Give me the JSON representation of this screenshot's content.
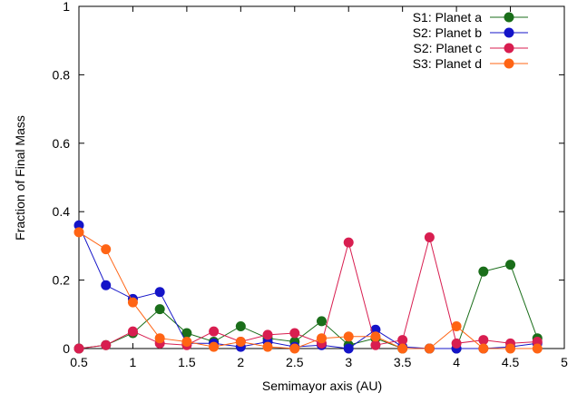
{
  "chart_data": {
    "type": "line",
    "title": "",
    "xlabel": "Semimayor axis (AU)",
    "ylabel": "Fraction of Final Mass",
    "xlim": [
      0.5,
      5
    ],
    "ylim": [
      0,
      1
    ],
    "x_ticks": [
      "0.5",
      "1",
      "1.5",
      "2",
      "2.5",
      "3",
      "3.5",
      "4",
      "4.5",
      "5"
    ],
    "y_ticks": [
      "0",
      "0.2",
      "0.4",
      "0.6",
      "0.8",
      "1"
    ],
    "grid": false,
    "legend_position": "top-right",
    "series": [
      {
        "name": "S1: Planet a",
        "color": "#1a6e1a",
        "x": [
          0.5,
          0.75,
          1.0,
          1.25,
          1.5,
          1.75,
          2.0,
          2.25,
          2.5,
          2.75,
          3.0,
          3.25,
          3.5,
          3.75,
          4.0,
          4.25,
          4.5,
          4.75
        ],
        "y": [
          0.0,
          0.01,
          0.045,
          0.115,
          0.045,
          0.02,
          0.065,
          0.03,
          0.02,
          0.08,
          0.01,
          0.03,
          0.0,
          0.0,
          0.0,
          0.225,
          0.245,
          0.03
        ]
      },
      {
        "name": "S2: Planet b",
        "color": "#1414c8",
        "x": [
          0.5,
          0.75,
          1.0,
          1.25,
          1.5,
          1.75,
          2.0,
          2.25,
          2.5,
          2.75,
          3.0,
          3.25,
          3.5,
          3.75,
          4.0,
          4.25,
          4.5,
          4.75
        ],
        "y": [
          0.36,
          0.185,
          0.145,
          0.165,
          0.015,
          0.015,
          0.005,
          0.02,
          0.005,
          0.01,
          0.0,
          0.055,
          0.005,
          0.0,
          0.0,
          0.0,
          0.005,
          0.015
        ]
      },
      {
        "name": "S2: Planet c",
        "color": "#d81e50",
        "x": [
          0.5,
          0.75,
          1.0,
          1.25,
          1.5,
          1.75,
          2.0,
          2.25,
          2.5,
          2.75,
          3.0,
          3.25,
          3.5,
          3.75,
          4.0,
          4.25,
          4.5,
          4.75
        ],
        "y": [
          0.0,
          0.01,
          0.05,
          0.015,
          0.01,
          0.05,
          0.02,
          0.04,
          0.045,
          0.015,
          0.31,
          0.01,
          0.025,
          0.325,
          0.015,
          0.025,
          0.015,
          0.02
        ]
      },
      {
        "name": "S3: Planet d",
        "color": "#ff6414",
        "x": [
          0.5,
          0.75,
          1.0,
          1.25,
          1.5,
          1.75,
          2.0,
          2.25,
          2.5,
          2.75,
          3.0,
          3.25,
          3.5,
          3.75,
          4.0,
          4.25,
          4.5,
          4.75
        ],
        "y": [
          0.34,
          0.29,
          0.135,
          0.03,
          0.02,
          0.005,
          0.02,
          0.005,
          0.0,
          0.03,
          0.035,
          0.035,
          0.0,
          0.0,
          0.065,
          0.0,
          0.0,
          0.0
        ]
      }
    ]
  }
}
